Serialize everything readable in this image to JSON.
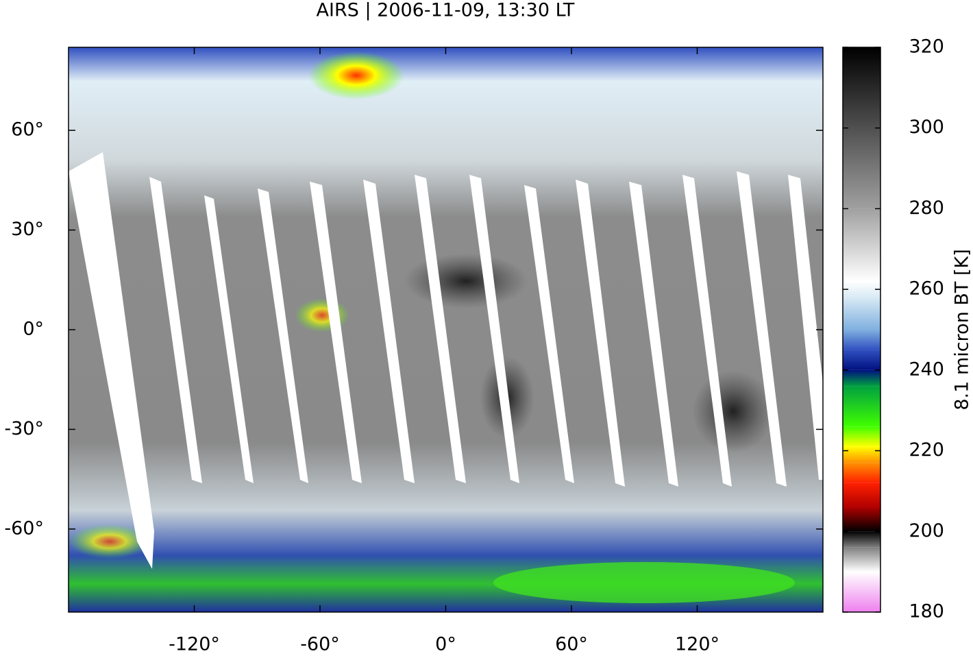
{
  "chart_data": {
    "type": "map",
    "title": "AIRS | 2006-11-09, 13:30 LT",
    "xlim": [
      -180,
      180
    ],
    "xticks": [
      {
        "value": -120,
        "label": "-120°"
      },
      {
        "value": -60,
        "label": "-60°"
      },
      {
        "value": 0,
        "label": "0°"
      },
      {
        "value": 60,
        "label": "60°"
      },
      {
        "value": 120,
        "label": "120°"
      }
    ],
    "ylim": [
      -85,
      85
    ],
    "yticks": [
      {
        "value": -60,
        "label": "-60°"
      },
      {
        "value": -30,
        "label": "-30°"
      },
      {
        "value": 0,
        "label": "0°"
      },
      {
        "value": 30,
        "label": "30°"
      },
      {
        "value": 60,
        "label": "60°"
      }
    ],
    "colorbar": {
      "label": "8.1 micron BT [K]",
      "lim": [
        180,
        320
      ],
      "ticks": [
        180,
        200,
        220,
        240,
        260,
        280,
        300,
        320
      ],
      "colormap": [
        {
          "value": 180,
          "color": "#ee80ee"
        },
        {
          "value": 190,
          "color": "#ffffff"
        },
        {
          "value": 196,
          "color": "#808080"
        },
        {
          "value": 200,
          "color": "#000000"
        },
        {
          "value": 206,
          "color": "#b00000"
        },
        {
          "value": 212,
          "color": "#ff2000"
        },
        {
          "value": 217,
          "color": "#ff9000"
        },
        {
          "value": 221,
          "color": "#ffff00"
        },
        {
          "value": 226,
          "color": "#40ff00"
        },
        {
          "value": 236,
          "color": "#00a040"
        },
        {
          "value": 240,
          "color": "#001080"
        },
        {
          "value": 245,
          "color": "#3050c0"
        },
        {
          "value": 250,
          "color": "#80b0e0"
        },
        {
          "value": 258,
          "color": "#d8eaf4"
        },
        {
          "value": 262,
          "color": "#ffffff"
        },
        {
          "value": 280,
          "color": "#a0a0a0"
        },
        {
          "value": 320,
          "color": "#000000"
        }
      ]
    }
  }
}
